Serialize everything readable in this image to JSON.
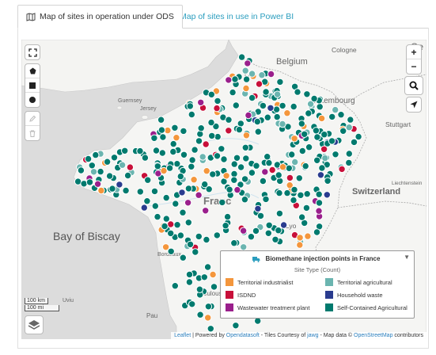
{
  "tabs": [
    {
      "label": "Map of sites in operation under ODS",
      "active": true
    },
    {
      "label": "Map of sites in use in Power BI",
      "active": false
    }
  ],
  "map": {
    "labels": {
      "belgium": "Belgium",
      "cologne": "Cologne",
      "ge": "Ge",
      "lille": "Lille",
      "guernsey": "Guernsey",
      "luxembourg": "Luxembourg",
      "stuttgart": "Stuttgart",
      "jersey": "Jersey",
      "france": "Franc",
      "switzerland": "Switzerland",
      "liechtenstein": "Liechtenstein",
      "bay": "Bay of Biscay",
      "bordeaux": "Bordeaux",
      "toulouse": "Toulouse",
      "pau": "Pau",
      "lyon": "Lyo",
      "uviu": "Uviu"
    },
    "scale": {
      "km": "100 km",
      "mi": "100 mi"
    }
  },
  "controls": {
    "zoom_in": "+",
    "zoom_out": "−"
  },
  "legend": {
    "title": "Biomethane injection points in France",
    "subtitle": "Site Type (Count)",
    "items": [
      {
        "label": "Territorial industrialist",
        "color": "#f4963c"
      },
      {
        "label": "Territorial agricultural",
        "color": "#6bb5b0"
      },
      {
        "label": "ISDND",
        "color": "#c8103a"
      },
      {
        "label": "Household waste",
        "color": "#2a3c8f"
      },
      {
        "label": "Wastewater treatment plant",
        "color": "#9a1f8c"
      },
      {
        "label": "Self-Contained Agricultural",
        "color": "#007a6e"
      }
    ]
  },
  "attribution": {
    "leaflet": "Leaflet",
    "powered": "| Powered by",
    "ods": "Opendatasoft",
    "tiles": "- Tiles Courtesy of",
    "jawg": "jawg",
    "mapdata": "- Map data ©",
    "osm": "OpenStreetMap",
    "contrib": "contributors"
  }
}
